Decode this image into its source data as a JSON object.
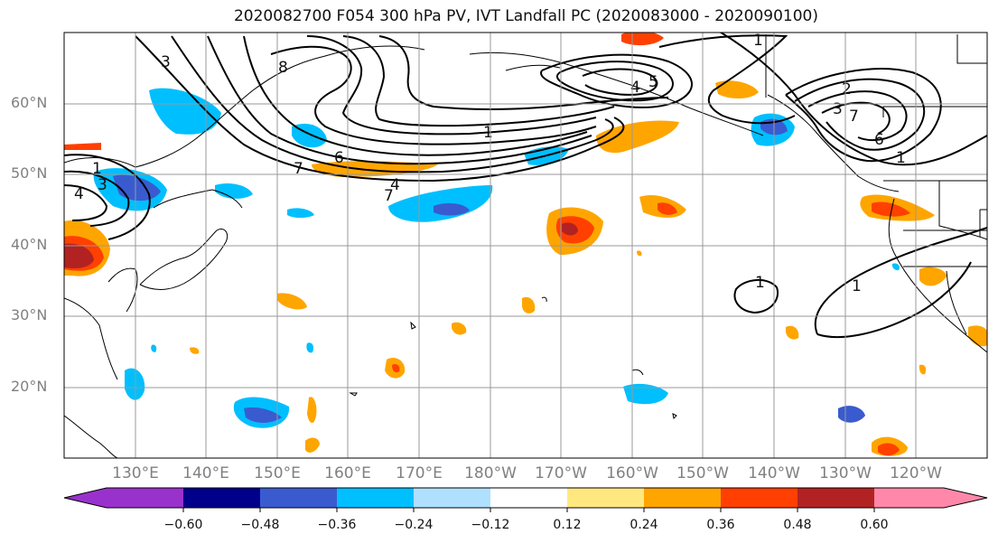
{
  "title": "2020082700 F054 300 hPa PV, IVT Landfall PC (2020083000 - 2020090100)",
  "lat_labels": [
    "60°N",
    "50°N",
    "40°N",
    "30°N",
    "20°N"
  ],
  "lon_labels": [
    "130°E",
    "140°E",
    "150°E",
    "160°E",
    "170°E",
    "180°W",
    "170°W",
    "160°W",
    "150°W",
    "140°W",
    "130°W",
    "120°W"
  ],
  "contour_labels": [
    "8",
    "3",
    "1",
    "7",
    "6",
    "4",
    "7",
    "1",
    "4",
    "3",
    "1",
    "4",
    "5",
    "2",
    "3",
    "7",
    "6",
    "1",
    "1",
    "1"
  ],
  "colorbar": {
    "ticks": [
      "−0.60",
      "−0.48",
      "−0.36",
      "−0.24",
      "−0.12",
      "0.12",
      "0.24",
      "0.36",
      "0.48",
      "0.60"
    ],
    "colors": [
      "#9932CC",
      "#00008B",
      "#3A5BCF",
      "#00BFFF",
      "#B0E0FF",
      "#FFFFFF",
      "#FFE880",
      "#FFA500",
      "#FF4000",
      "#B22222",
      "#FF88AA"
    ]
  }
}
